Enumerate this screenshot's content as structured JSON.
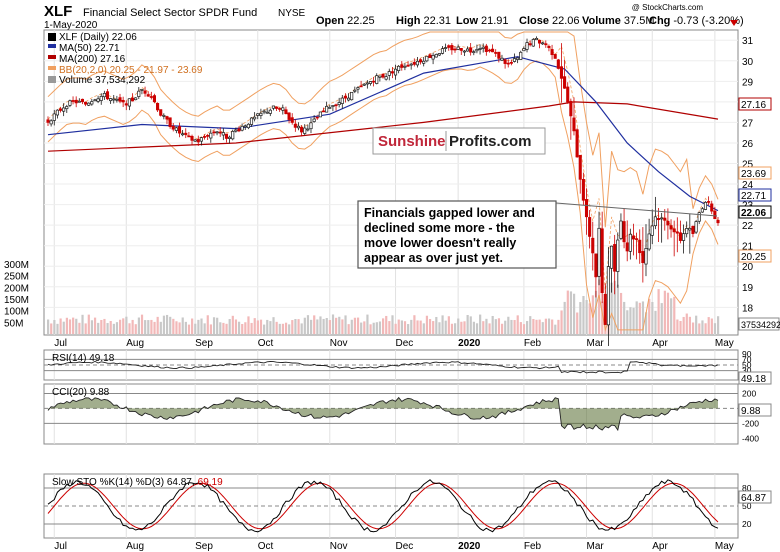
{
  "header": {
    "symbol": "XLF",
    "name": "Financial Select Sector SPDR Fund",
    "exchange": "NYSE",
    "date": "1-May-2020",
    "open_label": "Open",
    "open": "22.25",
    "high_label": "High",
    "high": "22.31",
    "low_label": "Low",
    "low": "21.91",
    "close_label": "Close",
    "close": "22.06",
    "volume_label": "Volume",
    "volume": "37.5M",
    "chg_label": "Chg",
    "chg": "-0.73 (-3.20%)",
    "watermark": "@ StockCharts.com"
  },
  "legend": {
    "line1": "XLF (Daily) 22.06",
    "line2": "MA(50) 22.71",
    "line3": "MA(200) 27.16",
    "line4": "BB(20,2.0) 20.25 - 21.97 - 23.69",
    "line5": "Volume 37,534,292"
  },
  "logo": {
    "part1": "Sunshine",
    "part2": "Profits.com"
  },
  "annotation": {
    "line1": "Financials gapped lower and",
    "line2": "declined some more - the",
    "line3": "move lower doesn't really",
    "line4": "appear as over just yet."
  },
  "colors": {
    "up": "#1a1a1a",
    "down": "#cc0000",
    "ma50": "#1f2f9f",
    "ma200": "#b00000",
    "bb": "#f0a060",
    "vol_up": "#c8c8c8",
    "vol_down": "#f2b8b8",
    "cci_fill_pos": "#556b2f",
    "cci_fill_neg": "#8b3a3a",
    "sto_k": "#000000",
    "sto_d": "#cc0000"
  },
  "x_axis_labels": [
    "Jul",
    "Aug",
    "Sep",
    "Oct",
    "Nov",
    "Dec",
    "2020",
    "Feb",
    "Mar",
    "Apr",
    "May"
  ],
  "price_axis": {
    "ticks": [
      "31",
      "30",
      "29",
      "28",
      "27",
      "26",
      "25",
      "24",
      "23",
      "22",
      "21",
      "20",
      "19",
      "18"
    ],
    "tags": [
      "27.16",
      "23.69",
      "22.71",
      "22.06",
      "20.25"
    ],
    "ylim": [
      16.8,
      31.4
    ]
  },
  "volume_axis": {
    "ticks": [
      "300M",
      "250M",
      "200M",
      "150M",
      "100M",
      "50M"
    ],
    "tag": "37534292"
  },
  "rsi": {
    "label": "RSI(14) 49.18",
    "ticks": [
      "90",
      "70",
      "50",
      "30",
      "10"
    ],
    "tag": "49.18"
  },
  "cci": {
    "label": "CCI(20) 9.88",
    "ticks": [
      "200",
      "0",
      "-200",
      "-400"
    ],
    "tag": "9.88"
  },
  "sto": {
    "label_k": "Slow STO %K(14) %D(3) 64.87,",
    "label_d": "69.19",
    "ticks": [
      "80",
      "50",
      "20"
    ],
    "tag": "64.87"
  },
  "chart_data": [
    {
      "type": "candlestick",
      "title": "XLF (Daily)",
      "series_close": [
        [
          0,
          27.05
        ],
        [
          3,
          27.5
        ],
        [
          6,
          27.9
        ],
        [
          9,
          28.0
        ],
        [
          12,
          27.9
        ],
        [
          15,
          28.2
        ],
        [
          18,
          28.3
        ],
        [
          21,
          28.1
        ],
        [
          24,
          27.9
        ],
        [
          27,
          28.1
        ],
        [
          30,
          28.6
        ],
        [
          33,
          28.3
        ],
        [
          36,
          27.4
        ],
        [
          39,
          26.9
        ],
        [
          42,
          26.5
        ],
        [
          45,
          26.2
        ],
        [
          48,
          26.1
        ],
        [
          51,
          26.4
        ],
        [
          54,
          26.6
        ],
        [
          57,
          26.3
        ],
        [
          60,
          26.6
        ],
        [
          63,
          26.9
        ],
        [
          66,
          27.2
        ],
        [
          69,
          27.5
        ],
        [
          72,
          27.7
        ],
        [
          75,
          27.6
        ],
        [
          78,
          27.0
        ],
        [
          81,
          26.6
        ],
        [
          84,
          26.9
        ],
        [
          87,
          27.4
        ],
        [
          90,
          27.8
        ],
        [
          93,
          28.0
        ],
        [
          96,
          28.3
        ],
        [
          99,
          28.6
        ],
        [
          102,
          28.9
        ],
        [
          105,
          29.2
        ],
        [
          108,
          29.3
        ],
        [
          111,
          29.6
        ],
        [
          114,
          29.8
        ],
        [
          117,
          29.9
        ],
        [
          120,
          30.1
        ],
        [
          123,
          30.3
        ],
        [
          126,
          30.5
        ],
        [
          129,
          30.6
        ],
        [
          132,
          30.6
        ],
        [
          135,
          30.5
        ],
        [
          138,
          30.7
        ],
        [
          141,
          30.5
        ],
        [
          144,
          30.2
        ],
        [
          147,
          29.8
        ],
        [
          150,
          30.1
        ],
        [
          153,
          30.8
        ],
        [
          156,
          31.0
        ],
        [
          159,
          30.8
        ],
        [
          162,
          30.2
        ],
        [
          164,
          29.2
        ],
        [
          166,
          28.0
        ],
        [
          168,
          26.5
        ],
        [
          170,
          24.3
        ],
        [
          172,
          22.3
        ],
        [
          174,
          20.7
        ],
        [
          175,
          19.5
        ],
        [
          176,
          21.8
        ],
        [
          177,
          18.6
        ],
        [
          178,
          17.2
        ],
        [
          179,
          20.1
        ],
        [
          180,
          20.9
        ],
        [
          181,
          19.8
        ],
        [
          182,
          21.4
        ],
        [
          183,
          22.2
        ],
        [
          184,
          21.3
        ],
        [
          185,
          20.8
        ],
        [
          186,
          21.5
        ],
        [
          188,
          21.3
        ],
        [
          190,
          20.2
        ],
        [
          192,
          21.6
        ],
        [
          194,
          22.4
        ],
        [
          196,
          22.3
        ],
        [
          198,
          22.1
        ],
        [
          200,
          21.7
        ],
        [
          202,
          21.3
        ],
        [
          204,
          21.9
        ],
        [
          206,
          21.6
        ],
        [
          208,
          22.6
        ],
        [
          210,
          23.2
        ],
        [
          212,
          22.8
        ],
        [
          214,
          22.06
        ]
      ],
      "series_ma50": [
        [
          0,
          26.4
        ],
        [
          30,
          26.9
        ],
        [
          60,
          26.7
        ],
        [
          90,
          27.4
        ],
        [
          120,
          29.4
        ],
        [
          150,
          30.2
        ],
        [
          165,
          29.6
        ],
        [
          175,
          28.0
        ],
        [
          185,
          26.0
        ],
        [
          195,
          24.6
        ],
        [
          205,
          23.4
        ],
        [
          214,
          22.71
        ]
      ],
      "series_ma200": [
        [
          0,
          25.6
        ],
        [
          60,
          26.0
        ],
        [
          120,
          27.0
        ],
        [
          160,
          27.8
        ],
        [
          168,
          28.0
        ],
        [
          185,
          27.9
        ],
        [
          214,
          27.16
        ]
      ],
      "bollinger": {
        "upper": 23.69,
        "middle": 21.97,
        "lower": 20.25
      },
      "last": {
        "open": 22.25,
        "high": 22.31,
        "low": 21.91,
        "close": 22.06
      }
    },
    {
      "type": "bar",
      "title": "Volume",
      "ylim": [
        0,
        300
      ],
      "unit": "M",
      "values_summary": {
        "last": 37534292,
        "peak_month": "Mar"
      }
    },
    {
      "type": "line",
      "title": "RSI(14)",
      "last": 49.18,
      "ylim": [
        0,
        100
      ]
    },
    {
      "type": "area",
      "title": "CCI(20)",
      "last": 9.88
    },
    {
      "type": "line",
      "title": "Slow STO %K(14) %D(3)",
      "k_last": 64.87,
      "d_last": 69.19,
      "ylim": [
        0,
        100
      ]
    }
  ]
}
